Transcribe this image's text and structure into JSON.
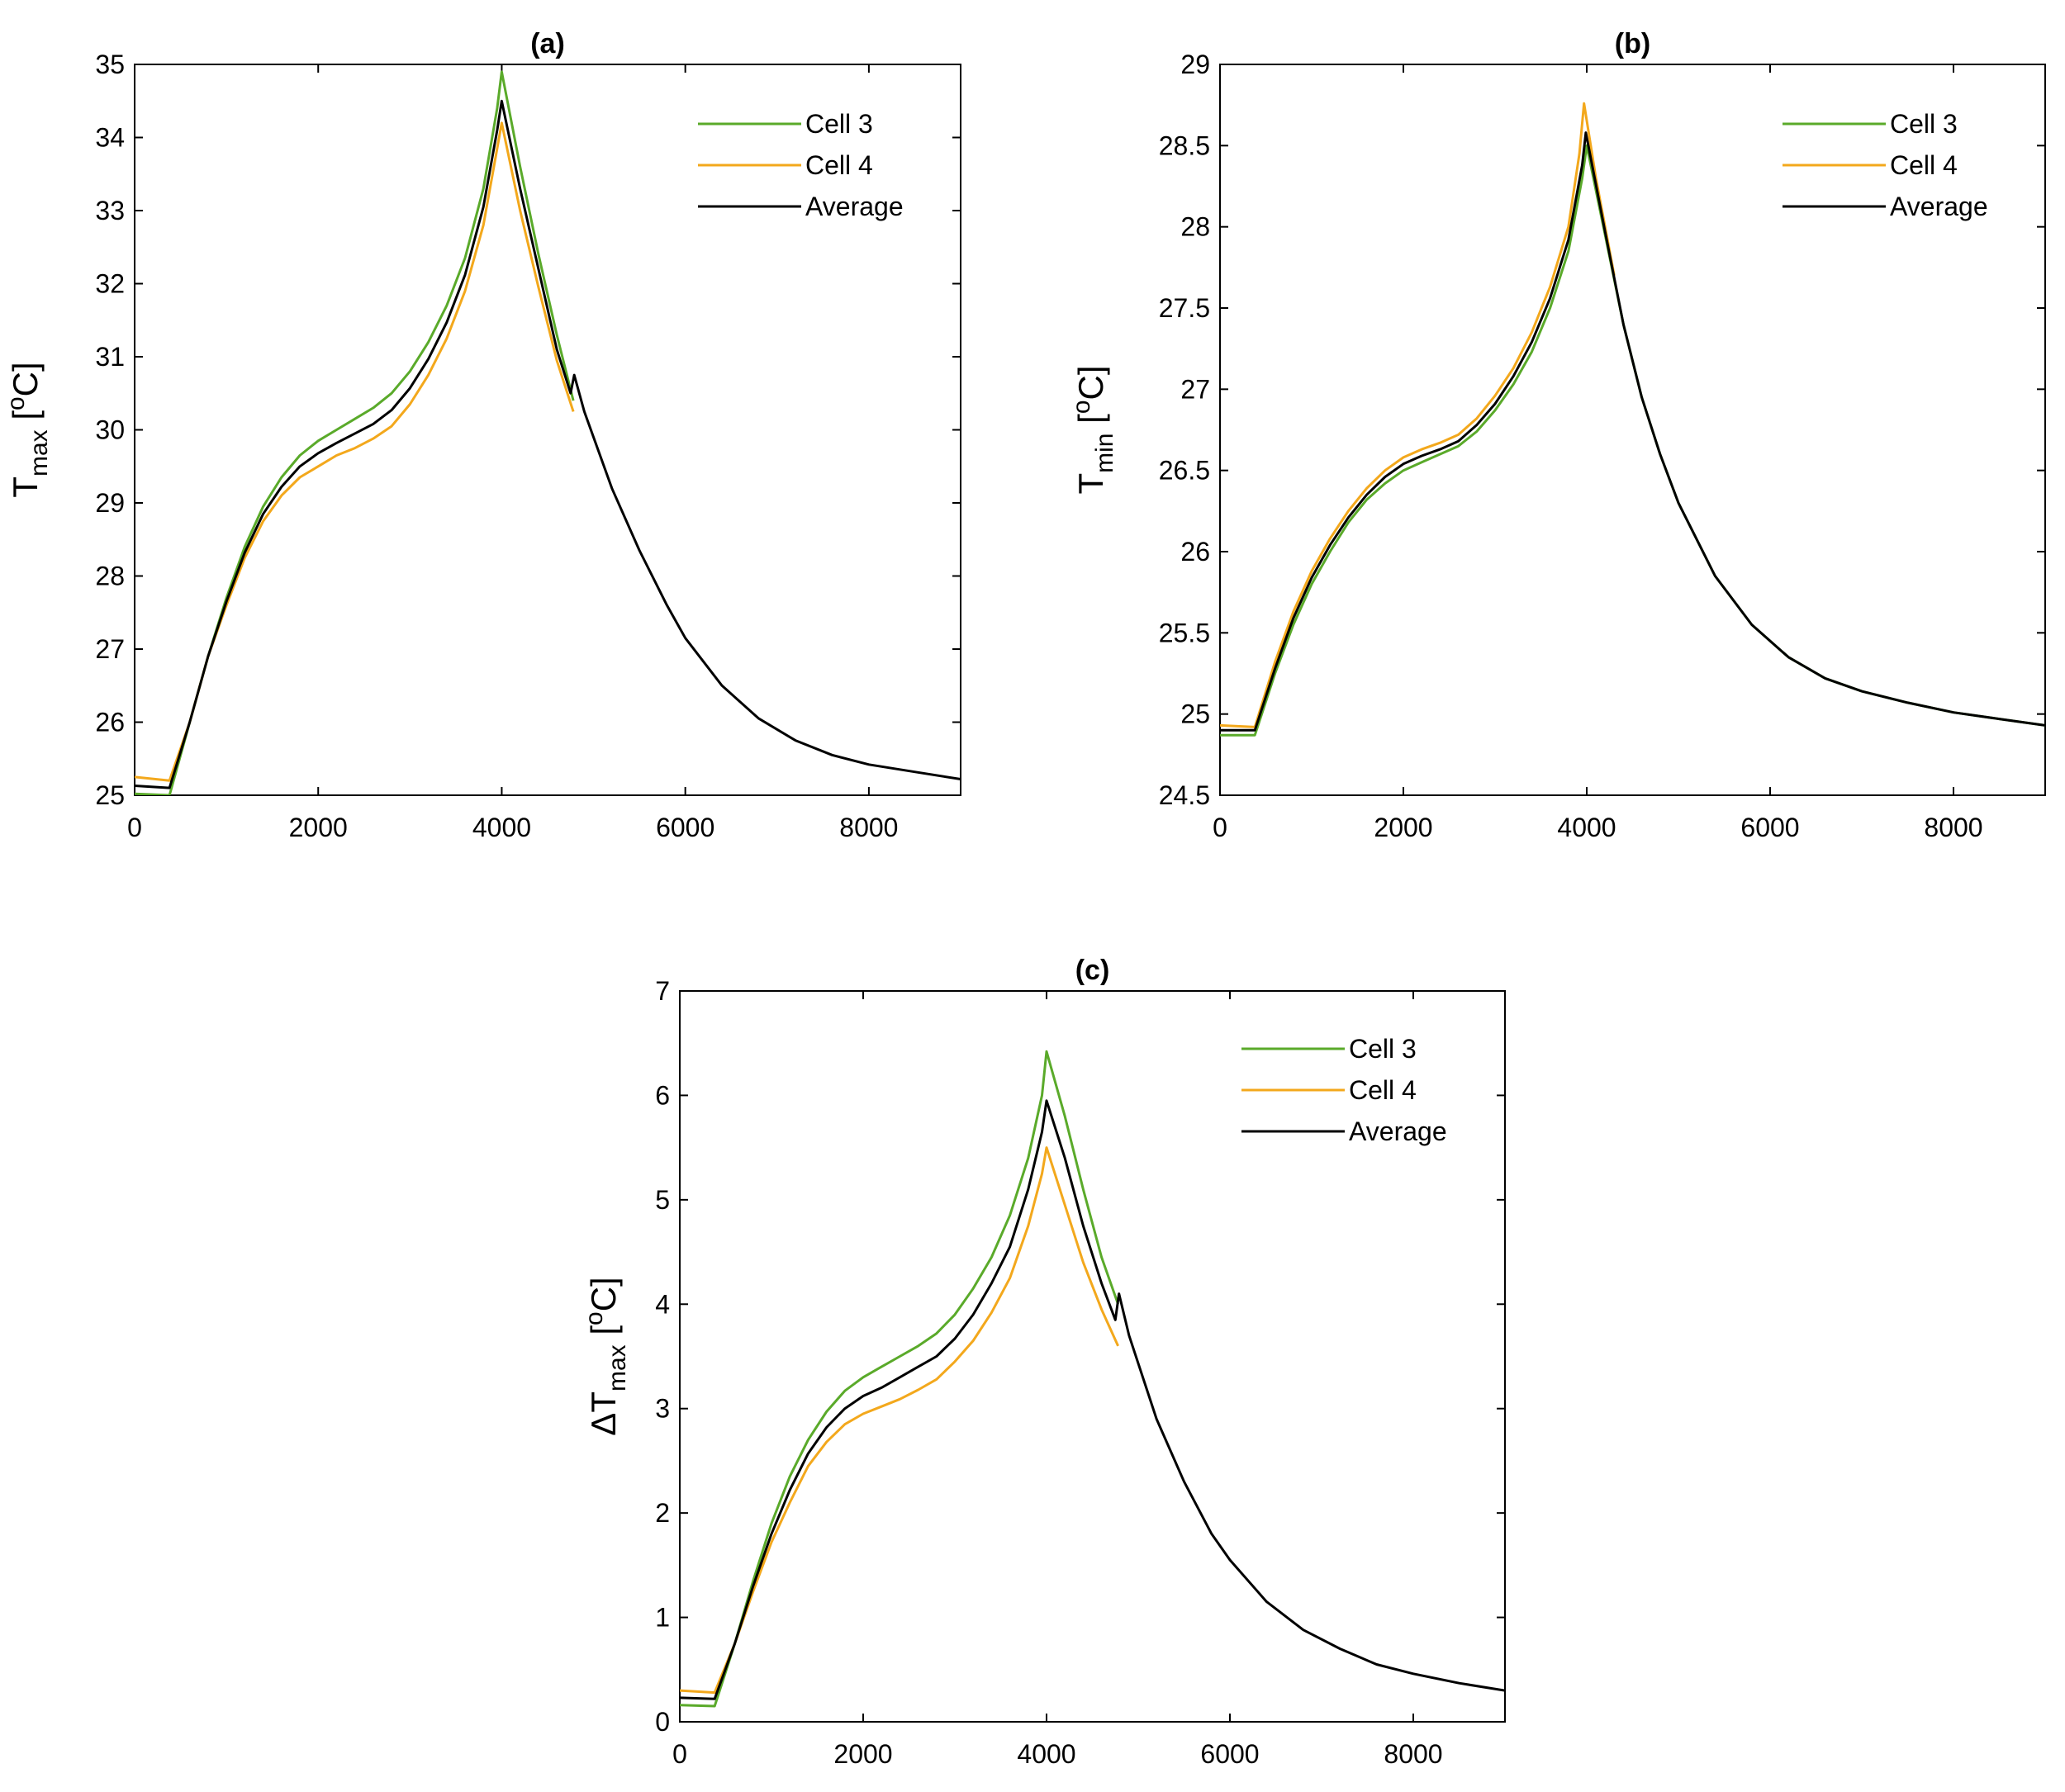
{
  "chart_data": [
    {
      "id": "a",
      "type": "line",
      "title": "(a)",
      "ylabel": {
        "main": "T",
        "sub": "max",
        "unit_open": "[",
        "unit_sup": "o",
        "unit_rest": "C]"
      },
      "xlim": [
        0,
        9000
      ],
      "ylim": [
        25,
        35
      ],
      "xticks": [
        0,
        2000,
        4000,
        6000,
        8000
      ],
      "yticks": [
        25,
        26,
        27,
        28,
        29,
        30,
        31,
        32,
        33,
        34,
        35
      ],
      "legend_position": "top-right",
      "series": [
        {
          "name": "Cell 3",
          "color": "#5aaa2a",
          "x": [
            0,
            380,
            600,
            800,
            1000,
            1200,
            1400,
            1600,
            1800,
            2000,
            2200,
            2400,
            2600,
            2800,
            3000,
            3200,
            3400,
            3600,
            3800,
            3950,
            4000,
            4200,
            4400,
            4600,
            4780
          ],
          "y": [
            25.02,
            25.0,
            26.0,
            26.9,
            27.7,
            28.4,
            28.95,
            29.35,
            29.65,
            29.85,
            30.0,
            30.15,
            30.3,
            30.5,
            30.8,
            31.2,
            31.7,
            32.35,
            33.3,
            34.4,
            34.9,
            33.6,
            32.4,
            31.3,
            30.4
          ]
        },
        {
          "name": "Cell 4",
          "color": "#f3a81c",
          "x": [
            0,
            380,
            600,
            800,
            1000,
            1200,
            1400,
            1600,
            1800,
            2000,
            2200,
            2400,
            2600,
            2800,
            3000,
            3200,
            3400,
            3600,
            3800,
            3950,
            4000,
            4200,
            4400,
            4600,
            4780
          ],
          "y": [
            25.25,
            25.2,
            26.0,
            26.9,
            27.6,
            28.25,
            28.75,
            29.1,
            29.35,
            29.5,
            29.65,
            29.75,
            29.88,
            30.05,
            30.35,
            30.75,
            31.25,
            31.9,
            32.8,
            33.85,
            34.2,
            33.0,
            31.95,
            30.95,
            30.25
          ]
        },
        {
          "name": "Average",
          "color": "#000000",
          "x": [
            0,
            380,
            600,
            800,
            1000,
            1200,
            1400,
            1600,
            1800,
            2000,
            2200,
            2400,
            2600,
            2800,
            3000,
            3200,
            3400,
            3600,
            3800,
            3950,
            4000,
            4200,
            4400,
            4600,
            4750,
            4790,
            4900,
            5200,
            5500,
            5800,
            6000,
            6400,
            6800,
            7200,
            7600,
            8000,
            8500,
            9000
          ],
          "y": [
            25.13,
            25.1,
            26.0,
            26.9,
            27.65,
            28.32,
            28.85,
            29.22,
            29.5,
            29.68,
            29.82,
            29.95,
            30.08,
            30.27,
            30.57,
            30.97,
            31.47,
            32.12,
            33.05,
            34.1,
            34.5,
            33.3,
            32.2,
            31.1,
            30.5,
            30.75,
            30.25,
            29.2,
            28.35,
            27.6,
            27.15,
            26.5,
            26.05,
            25.75,
            25.55,
            25.42,
            25.32,
            25.22
          ]
        }
      ]
    },
    {
      "id": "b",
      "type": "line",
      "title": "(b)",
      "ylabel": {
        "main": "T",
        "sub": "min",
        "unit_open": "[",
        "unit_sup": "o",
        "unit_rest": "C]"
      },
      "xlim": [
        0,
        9000
      ],
      "ylim": [
        24.5,
        29
      ],
      "xticks": [
        0,
        2000,
        4000,
        6000,
        8000
      ],
      "yticks": [
        24.5,
        25,
        25.5,
        26,
        26.5,
        27,
        27.5,
        28,
        28.5,
        29
      ],
      "legend_position": "top-right",
      "series": [
        {
          "name": "Cell 3",
          "color": "#5aaa2a",
          "x": [
            0,
            380,
            600,
            800,
            1000,
            1200,
            1400,
            1600,
            1800,
            2000,
            2200,
            2400,
            2600,
            2800,
            3000,
            3200,
            3400,
            3600,
            3800,
            3950,
            4000,
            4200,
            4400,
            4600,
            4800,
            5000,
            5400,
            5800,
            6200,
            6600,
            7000,
            7500,
            8000,
            8500,
            9000
          ],
          "y": [
            24.87,
            24.87,
            25.25,
            25.55,
            25.8,
            26.0,
            26.18,
            26.32,
            26.42,
            26.5,
            26.55,
            26.6,
            26.65,
            26.74,
            26.87,
            27.03,
            27.23,
            27.5,
            27.85,
            28.3,
            28.5,
            27.95,
            27.4,
            26.95,
            26.6,
            26.3,
            25.85,
            25.55,
            25.35,
            25.22,
            25.14,
            25.07,
            25.01,
            24.97,
            24.93
          ]
        },
        {
          "name": "Cell 4",
          "color": "#f3a81c",
          "x": [
            0,
            380,
            600,
            800,
            1000,
            1200,
            1400,
            1600,
            1800,
            2000,
            2200,
            2400,
            2600,
            2800,
            3000,
            3200,
            3400,
            3600,
            3800,
            3920,
            3970,
            4100,
            4300
          ],
          "y": [
            24.93,
            24.92,
            25.32,
            25.63,
            25.88,
            26.08,
            26.25,
            26.39,
            26.5,
            26.58,
            26.63,
            26.67,
            26.72,
            26.82,
            26.96,
            27.13,
            27.35,
            27.63,
            28.0,
            28.45,
            28.76,
            28.3,
            27.7
          ]
        },
        {
          "name": "Average",
          "color": "#000000",
          "x": [
            0,
            380,
            600,
            800,
            1000,
            1200,
            1400,
            1600,
            1800,
            2000,
            2200,
            2400,
            2600,
            2800,
            3000,
            3200,
            3400,
            3600,
            3800,
            3950,
            3990,
            4200,
            4400,
            4600,
            4800,
            5000,
            5400,
            5800,
            6200,
            6600,
            7000,
            7500,
            8000,
            8500,
            9000
          ],
          "y": [
            24.9,
            24.9,
            25.28,
            25.59,
            25.84,
            26.04,
            26.21,
            26.35,
            26.46,
            26.54,
            26.59,
            26.63,
            26.68,
            26.78,
            26.91,
            27.08,
            27.29,
            27.56,
            27.92,
            28.38,
            28.58,
            27.97,
            27.4,
            26.95,
            26.6,
            26.3,
            25.85,
            25.55,
            25.35,
            25.22,
            25.14,
            25.07,
            25.01,
            24.97,
            24.93
          ]
        }
      ]
    },
    {
      "id": "c",
      "type": "line",
      "title": "(c)",
      "ylabel": {
        "main": "ΔT",
        "sub": "max",
        "unit_open": "[",
        "unit_sup": "o",
        "unit_rest": "C]"
      },
      "xlim": [
        0,
        9000
      ],
      "ylim": [
        0,
        7
      ],
      "xticks": [
        0,
        2000,
        4000,
        6000,
        8000
      ],
      "yticks": [
        0,
        1,
        2,
        3,
        4,
        5,
        6,
        7
      ],
      "legend_position": "top-right",
      "series": [
        {
          "name": "Cell 3",
          "color": "#5aaa2a",
          "x": [
            0,
            380,
            600,
            800,
            1000,
            1200,
            1400,
            1600,
            1800,
            2000,
            2200,
            2400,
            2600,
            2800,
            3000,
            3200,
            3400,
            3600,
            3800,
            3950,
            4000,
            4200,
            4400,
            4600,
            4780
          ],
          "y": [
            0.16,
            0.15,
            0.75,
            1.35,
            1.9,
            2.35,
            2.7,
            2.97,
            3.17,
            3.3,
            3.4,
            3.5,
            3.6,
            3.72,
            3.9,
            4.15,
            4.45,
            4.85,
            5.4,
            6.0,
            6.42,
            5.8,
            5.1,
            4.45,
            4.0
          ]
        },
        {
          "name": "Cell 4",
          "color": "#f3a81c",
          "x": [
            0,
            380,
            600,
            800,
            1000,
            1200,
            1400,
            1600,
            1800,
            2000,
            2200,
            2400,
            2600,
            2800,
            3000,
            3200,
            3400,
            3600,
            3800,
            3950,
            4000,
            4200,
            4400,
            4600,
            4780
          ],
          "y": [
            0.3,
            0.28,
            0.75,
            1.25,
            1.72,
            2.1,
            2.45,
            2.68,
            2.85,
            2.95,
            3.02,
            3.09,
            3.18,
            3.28,
            3.45,
            3.65,
            3.92,
            4.25,
            4.75,
            5.25,
            5.5,
            4.95,
            4.4,
            3.95,
            3.6
          ]
        },
        {
          "name": "Average",
          "color": "#000000",
          "x": [
            0,
            380,
            600,
            800,
            1000,
            1200,
            1400,
            1600,
            1800,
            2000,
            2200,
            2400,
            2600,
            2800,
            3000,
            3200,
            3400,
            3600,
            3800,
            3950,
            4000,
            4200,
            4400,
            4600,
            4750,
            4790,
            4900,
            5200,
            5500,
            5800,
            6000,
            6400,
            6800,
            7200,
            7600,
            8000,
            8500,
            9000
          ],
          "y": [
            0.23,
            0.22,
            0.75,
            1.3,
            1.8,
            2.22,
            2.57,
            2.82,
            3.0,
            3.12,
            3.2,
            3.3,
            3.4,
            3.5,
            3.67,
            3.9,
            4.2,
            4.55,
            5.1,
            5.65,
            5.95,
            5.4,
            4.75,
            4.2,
            3.85,
            4.1,
            3.7,
            2.9,
            2.3,
            1.8,
            1.55,
            1.15,
            0.88,
            0.7,
            0.55,
            0.46,
            0.37,
            0.3
          ]
        }
      ]
    }
  ]
}
